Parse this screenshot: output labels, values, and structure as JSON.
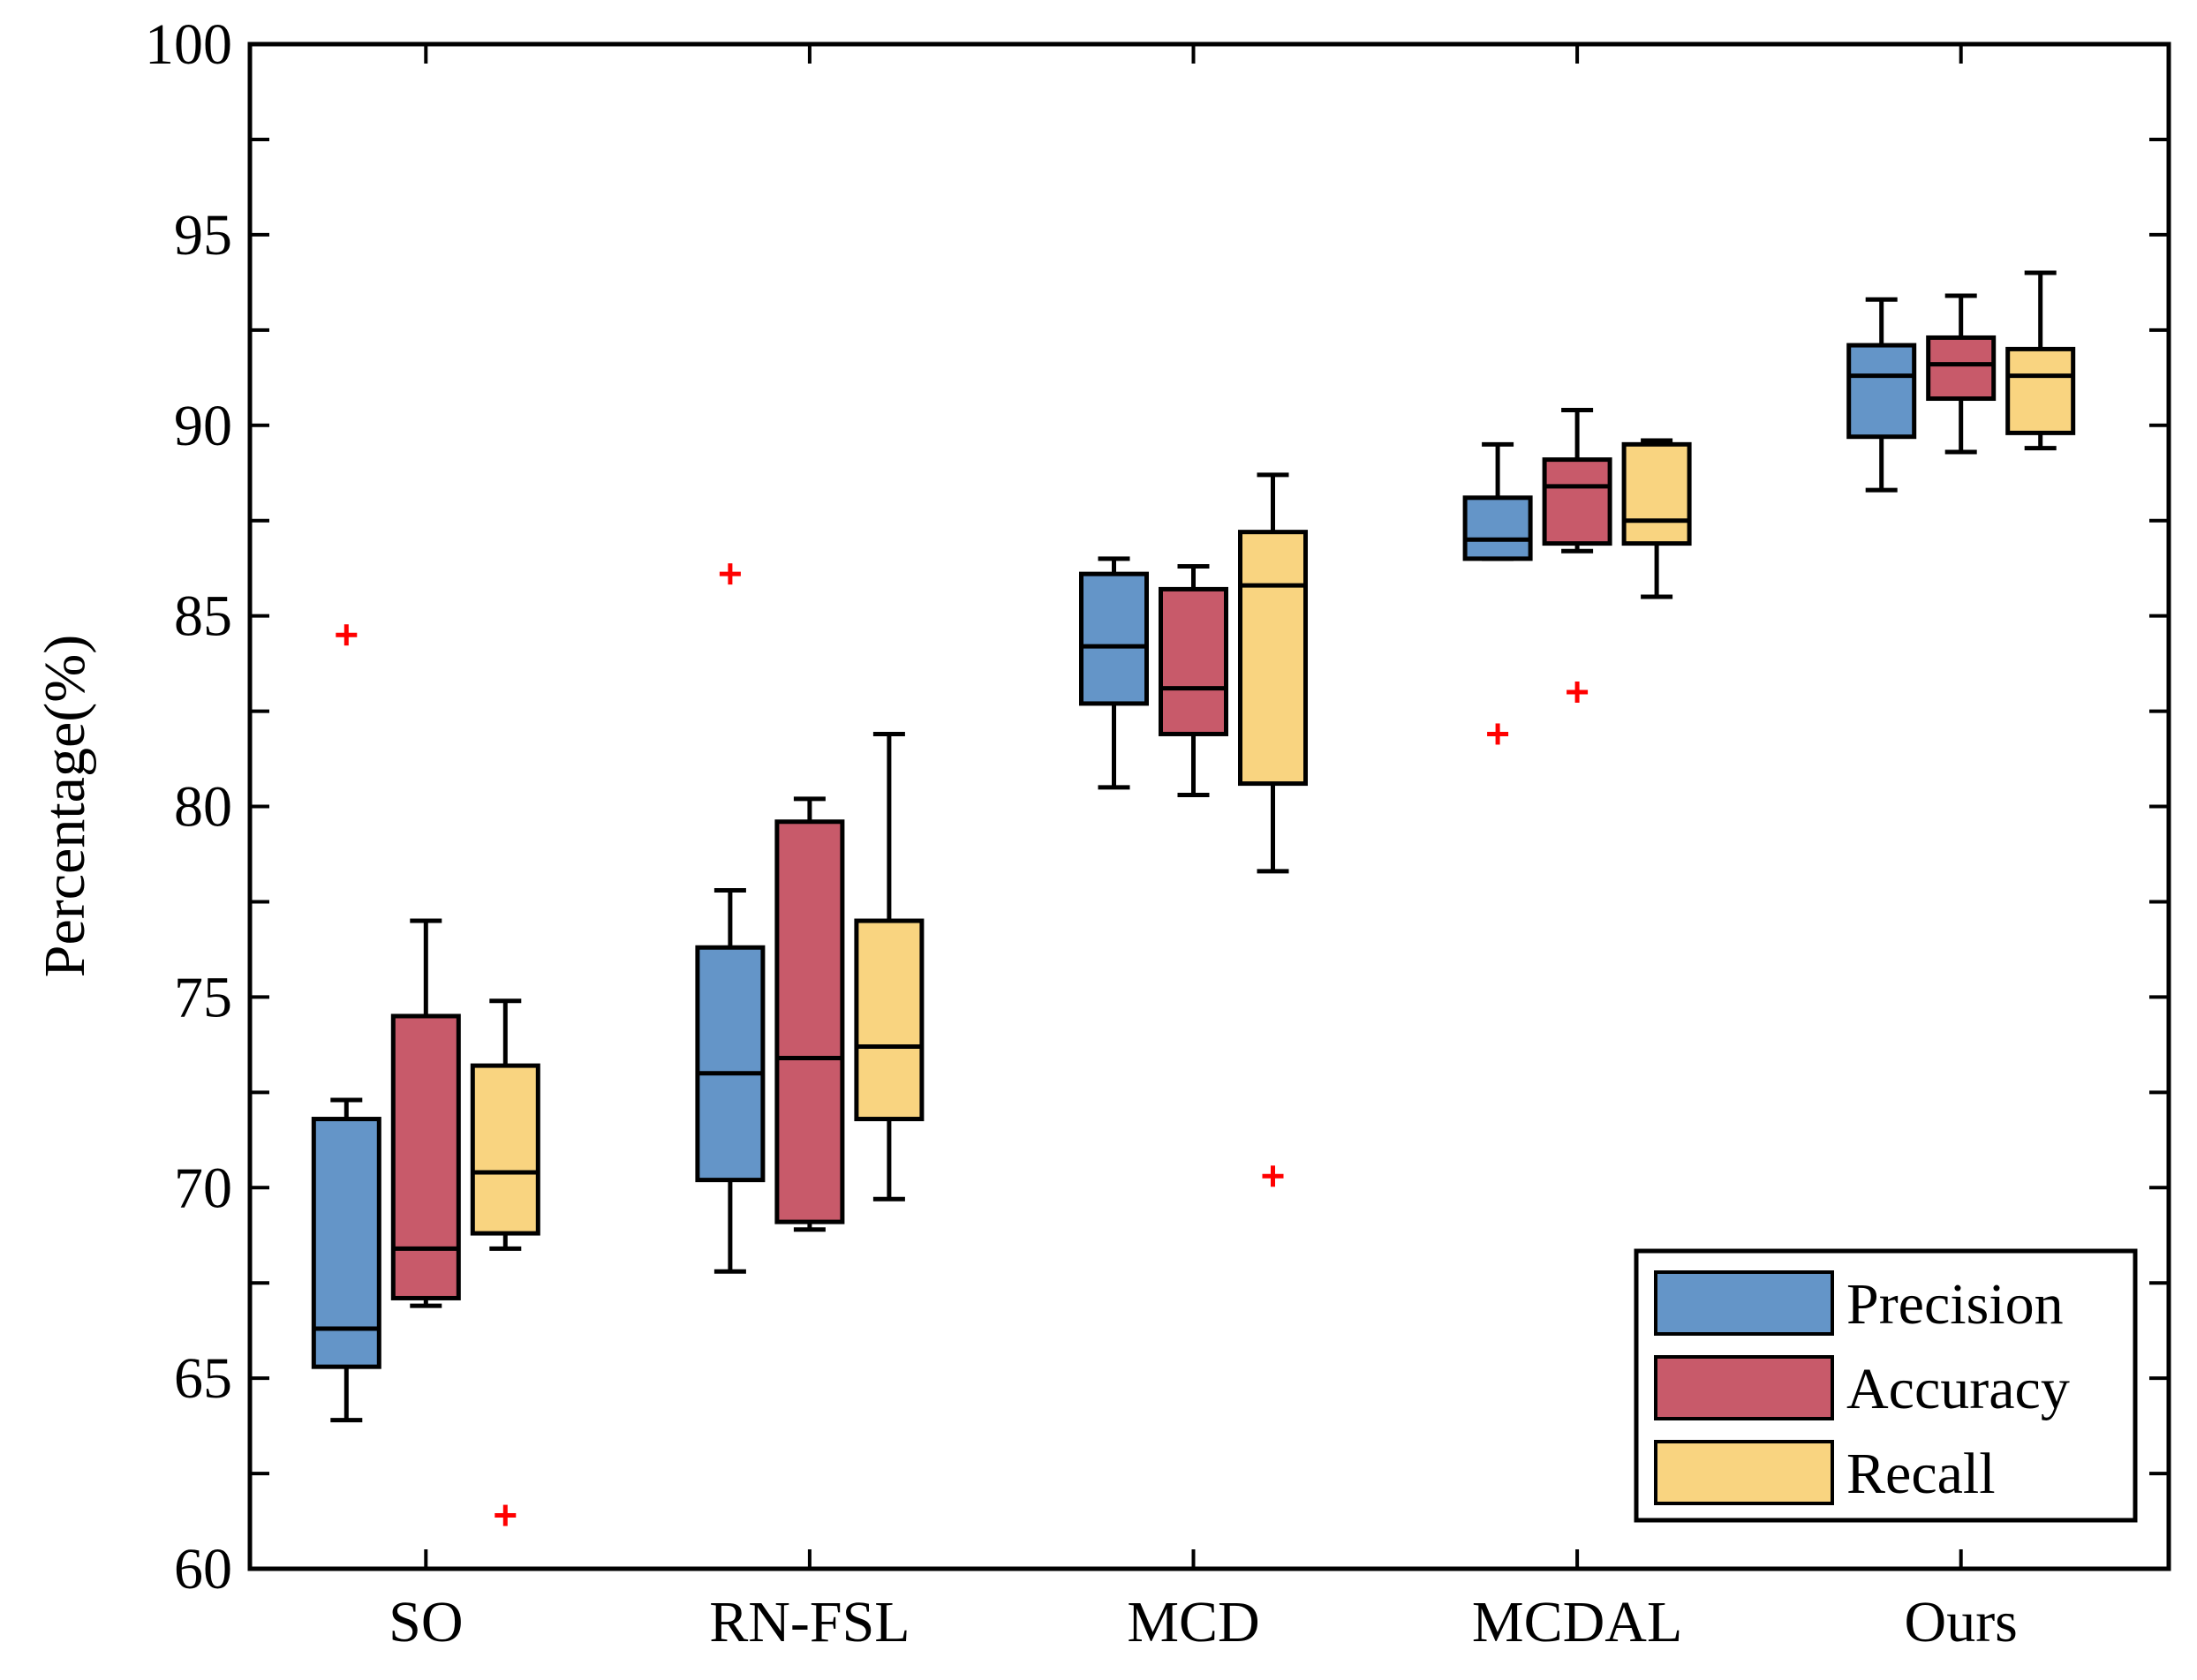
{
  "chart_data": {
    "type": "box",
    "title": "",
    "xlabel": "",
    "ylabel": "Percentage(%)",
    "ylim": [
      60,
      100
    ],
    "yticks": [
      60,
      65,
      70,
      75,
      80,
      85,
      90,
      95,
      100
    ],
    "categories": [
      "SO",
      "RN-FSL",
      "MCD",
      "MCDAL",
      "Ours"
    ],
    "legend_position": "bottom-right",
    "series": [
      {
        "name": "Precision",
        "color": "#6495c8",
        "boxes": [
          {
            "min": 63.9,
            "q1": 65.3,
            "median": 66.3,
            "q3": 71.8,
            "max": 72.3,
            "outliers": [
              84.5
            ]
          },
          {
            "min": 67.8,
            "q1": 70.2,
            "median": 73.0,
            "q3": 76.3,
            "max": 77.8,
            "outliers": [
              86.1
            ]
          },
          {
            "min": 80.5,
            "q1": 82.7,
            "median": 84.2,
            "q3": 86.1,
            "max": 86.5,
            "outliers": []
          },
          {
            "min": 86.5,
            "q1": 86.5,
            "median": 87.0,
            "q3": 88.1,
            "max": 89.5,
            "outliers": [
              81.9
            ]
          },
          {
            "min": 88.3,
            "q1": 89.7,
            "median": 91.3,
            "q3": 92.1,
            "max": 93.3,
            "outliers": []
          }
        ]
      },
      {
        "name": "Accuracy",
        "color": "#c85a6a",
        "boxes": [
          {
            "min": 66.9,
            "q1": 67.1,
            "median": 68.4,
            "q3": 74.5,
            "max": 77.0,
            "outliers": []
          },
          {
            "min": 68.9,
            "q1": 69.1,
            "median": 73.4,
            "q3": 79.6,
            "max": 80.2,
            "outliers": []
          },
          {
            "min": 80.3,
            "q1": 81.9,
            "median": 83.1,
            "q3": 85.7,
            "max": 86.3,
            "outliers": []
          },
          {
            "min": 86.7,
            "q1": 86.9,
            "median": 88.4,
            "q3": 89.1,
            "max": 90.4,
            "outliers": [
              83.0
            ]
          },
          {
            "min": 89.3,
            "q1": 90.7,
            "median": 91.6,
            "q3": 92.3,
            "max": 93.4,
            "outliers": []
          }
        ]
      },
      {
        "name": "Recall",
        "color": "#f9d480",
        "boxes": [
          {
            "min": 68.4,
            "q1": 68.8,
            "median": 70.4,
            "q3": 73.2,
            "max": 74.9,
            "outliers": [
              61.4
            ]
          },
          {
            "min": 69.7,
            "q1": 71.8,
            "median": 73.7,
            "q3": 77.0,
            "max": 81.9,
            "outliers": []
          },
          {
            "min": 78.3,
            "q1": 80.6,
            "median": 85.8,
            "q3": 87.2,
            "max": 88.7,
            "outliers": [
              70.3
            ]
          },
          {
            "min": 85.5,
            "q1": 86.9,
            "median": 87.5,
            "q3": 89.5,
            "max": 89.6,
            "outliers": []
          },
          {
            "min": 89.4,
            "q1": 89.8,
            "median": 91.3,
            "q3": 92.0,
            "max": 94.0,
            "outliers": []
          }
        ]
      }
    ]
  }
}
